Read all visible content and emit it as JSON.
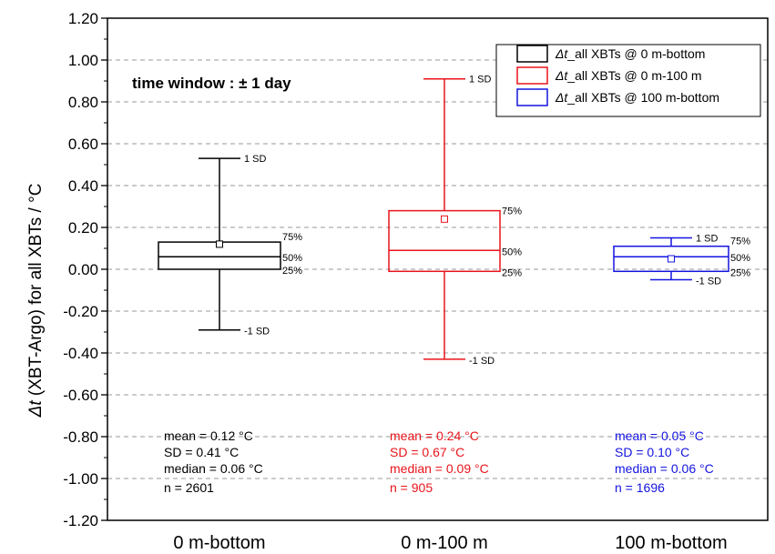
{
  "chart_data": {
    "type": "box",
    "ylabel_prefix": "Δt",
    "ylabel_rest": " (XBT-Argo) for all XBTs / °C",
    "ylim": [
      -1.2,
      1.2
    ],
    "yticks": [
      "1.20",
      "1.00",
      "0.80",
      "0.60",
      "0.40",
      "0.20",
      "0.00",
      "-0.20",
      "-0.40",
      "-0.60",
      "-0.80",
      "-1.00",
      "-1.20"
    ],
    "ytick_values": [
      1.2,
      1.0,
      0.8,
      0.6,
      0.4,
      0.2,
      0.0,
      -0.2,
      -0.4,
      -0.6,
      -0.8,
      -1.0,
      -1.2
    ],
    "grid": true,
    "annotation": "time window : ± 1 day",
    "legend_position": "top-right",
    "legend": [
      {
        "prefix": "Δt",
        "rest": "_all XBTs @ 0 m-bottom",
        "color": "#000000"
      },
      {
        "prefix": "Δt",
        "rest": "_all XBTs @ 0 m-100 m",
        "color": "#e8141a"
      },
      {
        "prefix": "Δt",
        "rest": "_all XBTs @ 100 m-bottom",
        "color": "#1414e0"
      }
    ],
    "series": [
      {
        "category": "0 m-bottom",
        "color": "#000000",
        "p25": 0.0,
        "median": 0.06,
        "p75": 0.13,
        "mean": 0.12,
        "upper_sd": 0.53,
        "lower_sd": -0.29,
        "label_upper": "1 SD",
        "label_lower": "-1 SD",
        "label_p75": "75%",
        "label_median": "50%",
        "label_p25": "25%",
        "stats": [
          "mean = 0.12 °C",
          "SD = 0.41 °C",
          "median = 0.06 °C",
          "n = 2601"
        ]
      },
      {
        "category": "0 m-100 m",
        "color": "#e8141a",
        "p25": -0.01,
        "median": 0.09,
        "p75": 0.28,
        "mean": 0.24,
        "upper_sd": 0.91,
        "lower_sd": -0.43,
        "label_upper": "1 SD",
        "label_lower": "-1 SD",
        "label_p75": "75%",
        "label_median": "50%",
        "label_p25": "25%",
        "stats": [
          "mean = 0.24 °C",
          "SD = 0.67 °C",
          "median = 0.09 °C",
          "n = 905"
        ]
      },
      {
        "category": "100 m-bottom",
        "color": "#1414e0",
        "p25": -0.01,
        "median": 0.06,
        "p75": 0.11,
        "mean": 0.05,
        "upper_sd": 0.15,
        "lower_sd": -0.05,
        "label_upper": "1 SD",
        "label_lower": "-1 SD",
        "label_p75": "75%",
        "label_median": "50%",
        "label_p25": "25%",
        "stats": [
          "mean = 0.05 °C",
          "SD = 0.10 °C",
          "median = 0.06 °C",
          "n = 1696"
        ]
      }
    ]
  }
}
